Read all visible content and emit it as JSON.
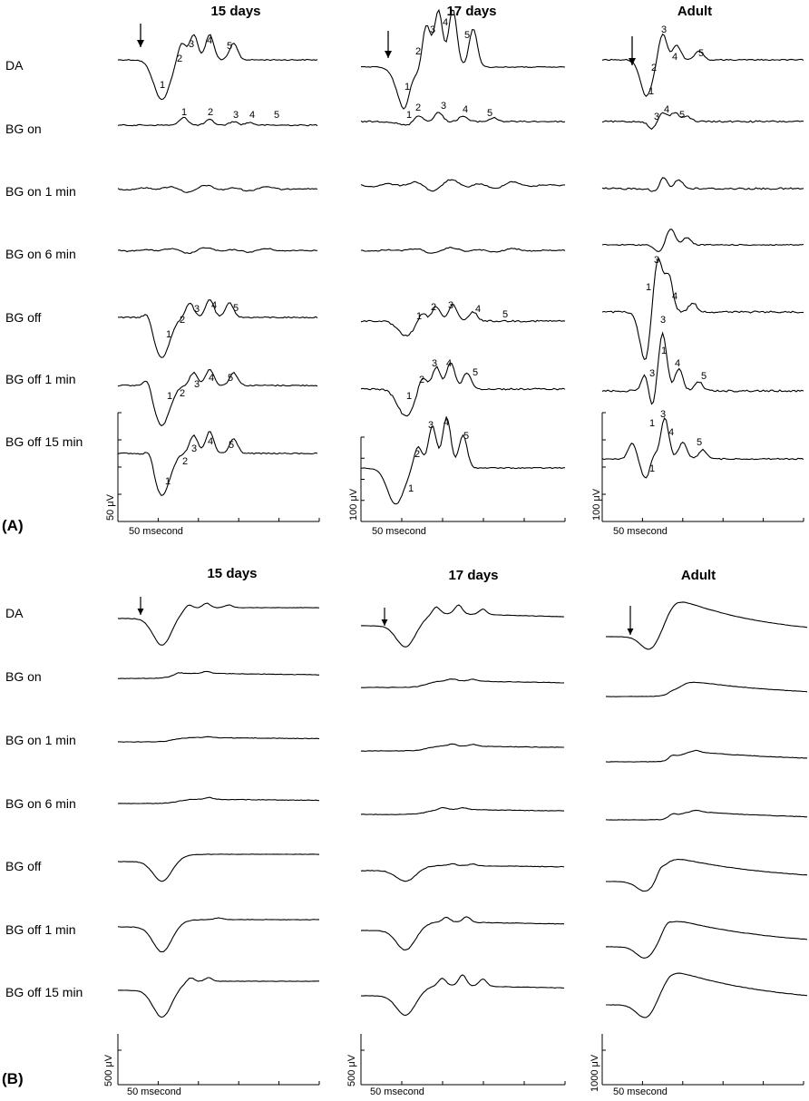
{
  "panels": [
    {
      "letter": "(A)",
      "columns": [
        "15 days",
        "17 days",
        "Adult"
      ],
      "rows": [
        "DA",
        "BG on",
        "BG on 1 min",
        "BG on 6 min",
        "BG off",
        "BG off 1 min",
        "BG off 15 min"
      ],
      "time_scale": [
        "50 msecond",
        "50 msecond",
        "50 msecond"
      ],
      "amp_scale": [
        "50 μV",
        "100 μV",
        "100 μV"
      ],
      "peak_labels": [
        "1",
        "2",
        "3",
        "4",
        "5"
      ]
    },
    {
      "letter": "(B)",
      "columns": [
        "15 days",
        "17 days",
        "Adult"
      ],
      "rows": [
        "DA",
        "BG on",
        "BG on 1 min",
        "BG on 6 min",
        "BG off",
        "BG off 1 min",
        "BG off 15 min"
      ],
      "time_scale": [
        "50 msecond",
        "50 msecond",
        "50 msecond"
      ],
      "amp_scale": [
        "500 μV",
        "500 μV",
        "1000 μV"
      ]
    }
  ]
}
